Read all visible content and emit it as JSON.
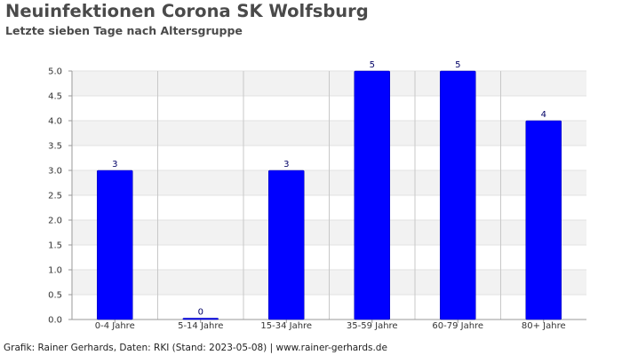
{
  "title": "Neuinfektionen Corona SK Wolfsburg",
  "subtitle": "Letzte sieben Tage nach Altersgruppe",
  "footer": "Grafik: Rainer Gerhards, Daten: RKI (Stand: 2023-05-08) | www.rainer-gerhards.de",
  "chart_data": {
    "type": "bar",
    "title": "Neuinfektionen Corona SK Wolfsburg",
    "subtitle": "Letzte sieben Tage nach Altersgruppe",
    "categories": [
      "0-4 Jahre",
      "5-14 Jahre",
      "15-34 Jahre",
      "35-59 Jahre",
      "60-79 Jahre",
      "80+ Jahre"
    ],
    "values": [
      3,
      0,
      3,
      5,
      5,
      4
    ],
    "xlabel": "",
    "ylabel": "",
    "ylim": [
      0,
      5
    ],
    "yticks": [
      "0.0",
      "0.5",
      "1.0",
      "1.5",
      "2.0",
      "2.5",
      "3.0",
      "3.5",
      "4.0",
      "4.5",
      "5.0"
    ],
    "grid": true,
    "legend": "none",
    "bar_color": "#0000ff",
    "band_color": "#f2f2f2",
    "data_label_color": "#000066"
  }
}
